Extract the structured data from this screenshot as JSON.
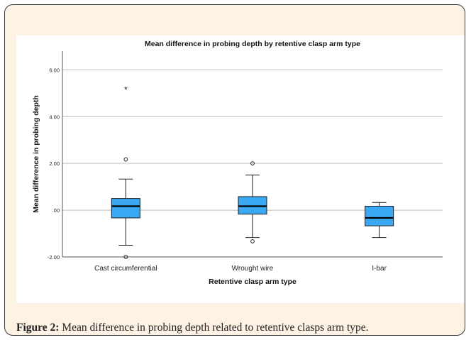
{
  "caption": {
    "label": "Figure 2:",
    "text": "Mean difference in probing depth related to retentive clasps arm type."
  },
  "colors": {
    "box_fill": "#3aa8f2",
    "box_stroke": "#1a1a1a",
    "grid": "#bdbdbd",
    "panel_bg": "#fdf2e4",
    "frame_border": "#3a3a3a"
  },
  "chart_data": {
    "type": "box",
    "title": "Mean difference in probing depth by retentive clasp arm type",
    "xlabel": "Retentive clasp arm type",
    "ylabel": "Mean difference in probing depth",
    "ylim": [
      -2.0,
      6.8
    ],
    "yticks": [
      -2.0,
      0.0,
      2.0,
      4.0,
      6.0
    ],
    "ytick_labels": [
      "-2.00",
      ".00",
      "2.00",
      "4.00",
      "6.00"
    ],
    "grid": true,
    "categories": [
      "Cast circumferential",
      "Wrought wire",
      "I-bar"
    ],
    "boxes": [
      {
        "category": "Cast circumferential",
        "whisker_low": -1.5,
        "q1": -0.33,
        "median": 0.17,
        "q3": 0.5,
        "whisker_high": 1.33,
        "outliers": [
          2.17,
          -2.0
        ],
        "extremes": [
          5.17
        ]
      },
      {
        "category": "Wrought wire",
        "whisker_low": -1.17,
        "q1": -0.17,
        "median": 0.17,
        "q3": 0.58,
        "whisker_high": 1.5,
        "outliers": [
          2.0,
          -1.33
        ],
        "extremes": []
      },
      {
        "category": "I-bar",
        "whisker_low": -1.17,
        "q1": -0.67,
        "median": -0.33,
        "q3": 0.17,
        "whisker_high": 0.33,
        "outliers": [],
        "extremes": []
      }
    ]
  }
}
